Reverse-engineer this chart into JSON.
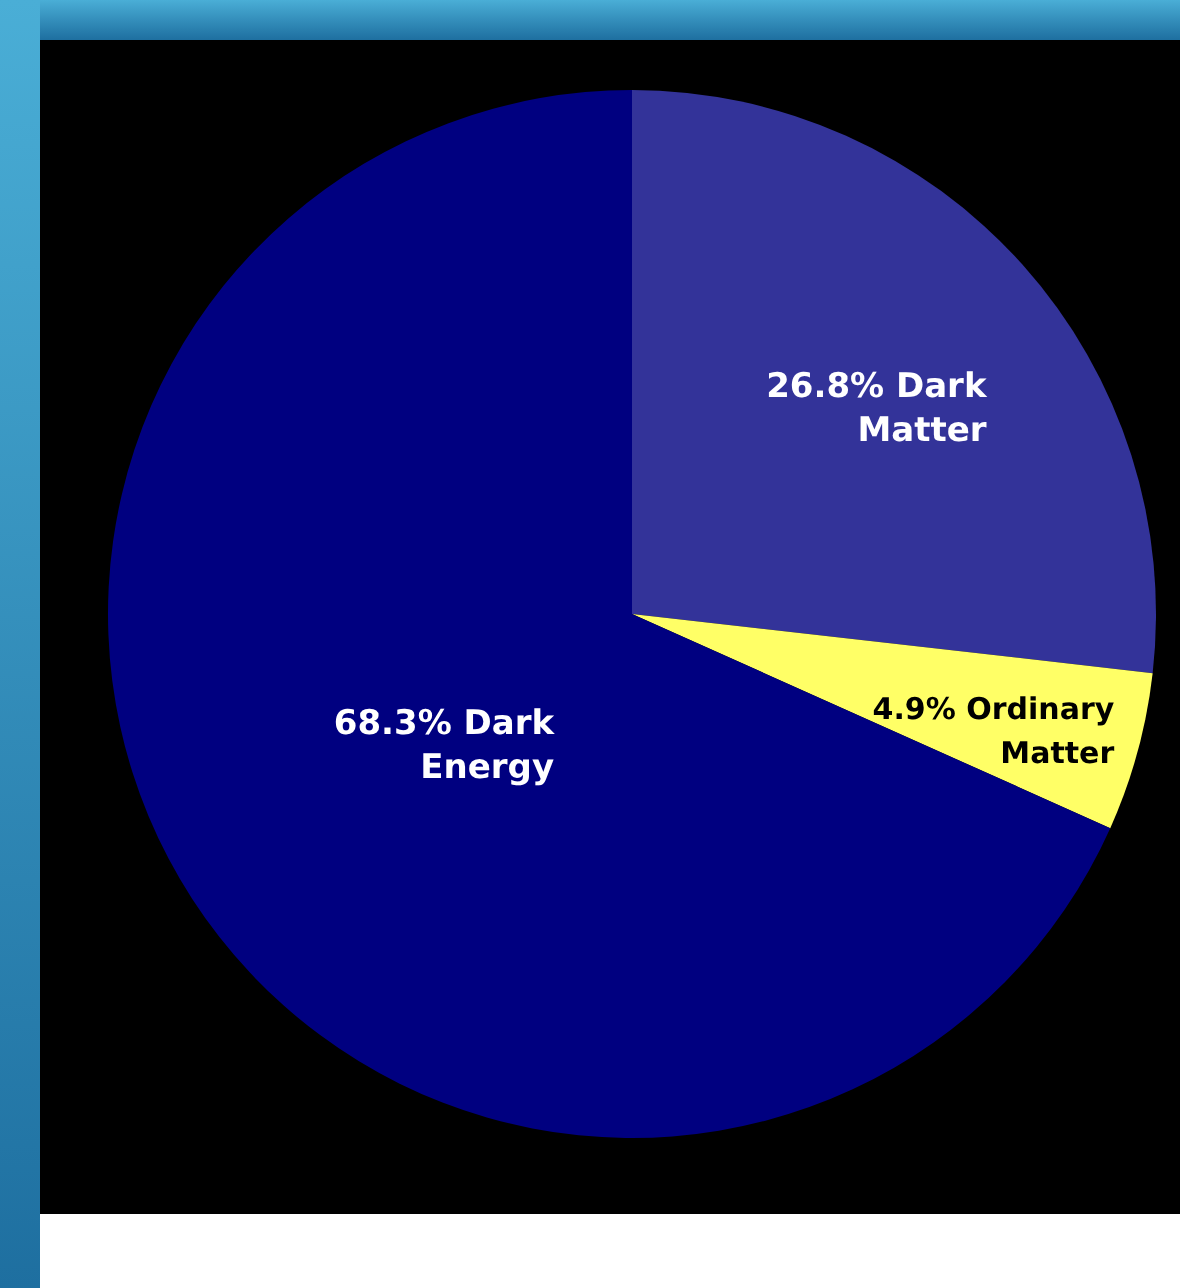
{
  "chart_data": {
    "type": "pie",
    "categories": [
      "Dark Matter",
      "Ordinary Matter",
      "Dark Energy"
    ],
    "values": [
      26.8,
      4.9,
      68.3
    ],
    "value_labels": [
      "26.8%",
      "4.9%",
      "68.3%"
    ],
    "colors": [
      "#333399",
      "#ffff66",
      "#000080"
    ]
  }
}
